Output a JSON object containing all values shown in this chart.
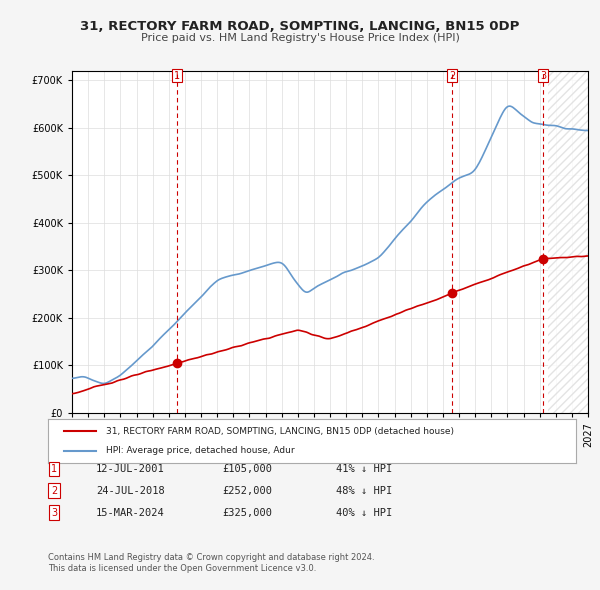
{
  "title": "31, RECTORY FARM ROAD, SOMPTING, LANCING, BN15 0DP",
  "subtitle": "Price paid vs. HM Land Registry's House Price Index (HPI)",
  "xlabel": "",
  "ylabel": "",
  "ylim": [
    0,
    720000
  ],
  "yticks": [
    0,
    100000,
    200000,
    300000,
    400000,
    500000,
    600000,
    700000
  ],
  "ytick_labels": [
    "£0",
    "£100K",
    "£200K",
    "£300K",
    "£400K",
    "£500K",
    "£600K",
    "£700K"
  ],
  "hpi_color": "#6699cc",
  "price_color": "#cc0000",
  "vline_color": "#cc0000",
  "sale_dates": [
    2001.53,
    2018.56,
    2024.21
  ],
  "sale_prices": [
    105000,
    252000,
    325000
  ],
  "sale_labels": [
    "1",
    "2",
    "3"
  ],
  "legend_label_price": "31, RECTORY FARM ROAD, SOMPTING, LANCING, BN15 0DP (detached house)",
  "legend_label_hpi": "HPI: Average price, detached house, Adur",
  "table_data": [
    [
      "1",
      "12-JUL-2001",
      "£105,000",
      "41% ↓ HPI"
    ],
    [
      "2",
      "24-JUL-2018",
      "£252,000",
      "48% ↓ HPI"
    ],
    [
      "3",
      "15-MAR-2024",
      "£325,000",
      "40% ↓ HPI"
    ]
  ],
  "footnote": "Contains HM Land Registry data © Crown copyright and database right 2024.\nThis data is licensed under the Open Government Licence v3.0.",
  "bg_color": "#f5f5f5",
  "plot_bg_color": "#ffffff",
  "hatch_color": "#cccccc"
}
